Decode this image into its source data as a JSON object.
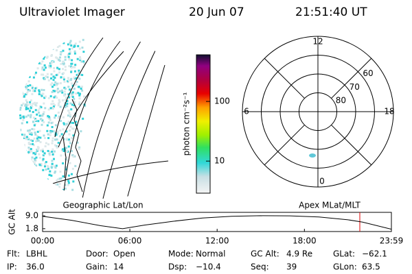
{
  "header": {
    "title": "Ultraviolet Imager",
    "date": "20 Jun 07",
    "time": "21:51:40 UT"
  },
  "map_label": "Geographic Lat/Lon",
  "polar": {
    "label": "Apex MLat/MLT",
    "lat_lim": [
      90,
      50
    ],
    "lat_ticks": [
      80,
      70,
      60
    ],
    "mlt_ticks": [
      12,
      6,
      0,
      18
    ]
  },
  "colorbar": {
    "label": "photon cm⁻²s⁻¹",
    "lim": [
      2.9,
      605
    ],
    "log": true,
    "ticks": [
      10,
      100
    ]
  },
  "chart_data": {
    "type": "line",
    "ylabel": "GC Alt",
    "x": [
      0,
      2,
      4,
      5.5,
      7,
      9,
      11,
      13,
      15,
      17,
      19,
      21,
      22,
      23.98
    ],
    "series": [
      {
        "color": "#000000",
        "values": [
          8.8,
          6.5,
          3.5,
          1.8,
          3.8,
          6,
          7.8,
          8.8,
          9.1,
          9.0,
          8.4,
          6.8,
          5.5,
          1.5
        ]
      }
    ],
    "xlim": [
      0,
      23.98
    ],
    "xticks": [
      {
        "value": 0,
        "label": "00:00"
      },
      {
        "value": 6,
        "label": "06:00"
      },
      {
        "value": 12,
        "label": "12:00"
      },
      {
        "value": 18,
        "label": "18:00"
      },
      {
        "value": 23.98,
        "label": "23:59"
      }
    ],
    "ylim": [
      0.2,
      11
    ],
    "yticks": [
      {
        "value": 9,
        "label": "9.0"
      },
      1.8
    ]
  },
  "info": {
    "rows": [
      [
        {
          "key": "Flt:",
          "value": "LBHL"
        },
        {
          "key": "Door:",
          "value": "Open"
        },
        {
          "key": "Mode:",
          "value": "Normal"
        },
        {
          "key": "GC Alt:",
          "value": "4.9 Re"
        },
        {
          "key": "GLat:",
          "value": "−62.1"
        }
      ],
      [
        {
          "key": "IP:",
          "value": "36.0"
        },
        {
          "key": "Gain:",
          "value": "14"
        },
        {
          "key": "Dsp:",
          "value": "−10.4"
        },
        {
          "key": "Seq:",
          "value": "39"
        },
        {
          "key": "GLon:",
          "value": "63.5"
        }
      ]
    ]
  }
}
